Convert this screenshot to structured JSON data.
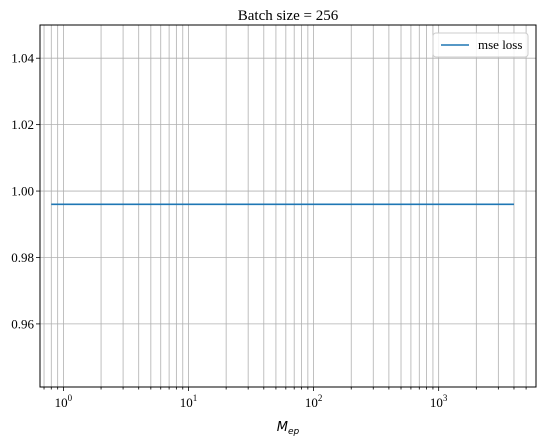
{
  "chart_data": {
    "type": "line",
    "title": "Batch size = 256",
    "xlabel_main": "M",
    "xlabel_sub": "ep",
    "ylabel": "",
    "xscale": "log",
    "xlim": [
      0.65,
      6000
    ],
    "ylim": [
      0.941,
      1.05
    ],
    "grid": true,
    "grid_which": "both",
    "legend_position": "upper right",
    "x_ticks": [
      {
        "base": "10",
        "exp": "0",
        "value": 1
      },
      {
        "base": "10",
        "exp": "1",
        "value": 10
      },
      {
        "base": "10",
        "exp": "2",
        "value": 100
      },
      {
        "base": "10",
        "exp": "3",
        "value": 1000
      }
    ],
    "y_ticks": [
      {
        "label": "0.96",
        "value": 0.96
      },
      {
        "label": "0.98",
        "value": 0.98
      },
      {
        "label": "1.00",
        "value": 1.0
      },
      {
        "label": "1.02",
        "value": 1.02
      },
      {
        "label": "1.04",
        "value": 1.04
      }
    ],
    "series": [
      {
        "name": "mse loss",
        "color": "#1f77b4",
        "x": [
          0.8,
          4000
        ],
        "y": [
          0.996,
          0.996
        ]
      }
    ]
  }
}
